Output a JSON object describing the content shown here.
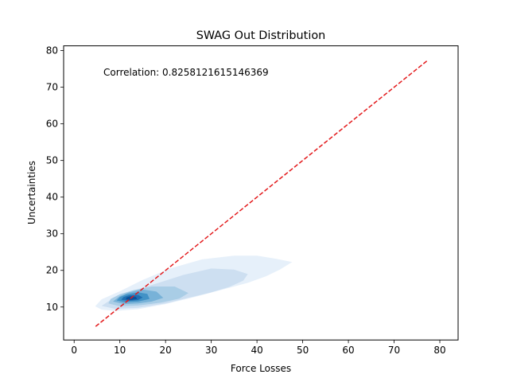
{
  "chart_data": {
    "type": "kde-contour",
    "title": "SWAG Out Distribution",
    "xlabel": "Force Losses",
    "ylabel": "Uncertainties",
    "xlim": [
      -2.3,
      84.0
    ],
    "ylim": [
      1.0,
      81.3
    ],
    "x_ticks": [
      0,
      10,
      20,
      30,
      40,
      50,
      60,
      70,
      80
    ],
    "y_ticks": [
      10,
      20,
      30,
      40,
      50,
      60,
      70,
      80
    ],
    "annotation": "Correlation: 0.8258121615146369",
    "reference_line": {
      "from": [
        4.7,
        4.7
      ],
      "to": [
        77.2,
        77.2
      ],
      "color": "#e31a1c",
      "style": "dashed"
    },
    "grid": false,
    "colormap": [
      "#e6f0fa",
      "#cddff1",
      "#a9cde6",
      "#78b2d8",
      "#4292c6",
      "#1f6eb1",
      "#08519c"
    ],
    "density_levels": [
      {
        "level": 1,
        "points": [
          [
            4.6,
            10.2
          ],
          [
            6,
            9.3
          ],
          [
            9,
            8.9
          ],
          [
            14,
            9.4
          ],
          [
            20,
            10.8
          ],
          [
            26,
            12.6
          ],
          [
            32,
            14.6
          ],
          [
            38,
            16.6
          ],
          [
            42,
            18.4
          ],
          [
            45,
            20.2
          ],
          [
            47.7,
            22.3
          ],
          [
            44,
            23.2
          ],
          [
            40,
            24.0
          ],
          [
            35,
            24.0
          ],
          [
            28,
            23.0
          ],
          [
            21,
            20.5
          ],
          [
            15,
            17.4
          ],
          [
            10,
            14.3
          ],
          [
            6,
            12.1
          ]
        ]
      },
      {
        "level": 2,
        "points": [
          [
            6,
            10.3
          ],
          [
            9,
            9.5
          ],
          [
            14,
            9.8
          ],
          [
            20,
            11.0
          ],
          [
            25,
            12.5
          ],
          [
            30,
            14.0
          ],
          [
            34,
            15.5
          ],
          [
            37,
            17.2
          ],
          [
            38,
            19.0
          ],
          [
            35,
            20.2
          ],
          [
            30,
            20.5
          ],
          [
            24,
            18.8
          ],
          [
            18,
            16.4
          ],
          [
            13,
            14.5
          ],
          [
            9,
            12.8
          ]
        ]
      },
      {
        "level": 3,
        "points": [
          [
            7.5,
            11.0
          ],
          [
            10,
            10.2
          ],
          [
            14,
            10.4
          ],
          [
            19,
            11.2
          ],
          [
            23,
            12.3
          ],
          [
            25,
            13.8
          ],
          [
            22,
            15.6
          ],
          [
            17,
            15.6
          ],
          [
            13,
            14.6
          ],
          [
            10,
            13.5
          ],
          [
            8,
            12.2
          ]
        ]
      },
      {
        "level": 4,
        "points": [
          [
            8.5,
            11.5
          ],
          [
            11,
            10.8
          ],
          [
            14,
            11.0
          ],
          [
            17,
            11.5
          ],
          [
            19.5,
            12.5
          ],
          [
            18,
            14.2
          ],
          [
            15,
            14.8
          ],
          [
            12,
            14.0
          ],
          [
            10,
            13.0
          ]
        ]
      },
      {
        "level": 5,
        "points": [
          [
            9.3,
            11.8
          ],
          [
            11,
            11.3
          ],
          [
            14,
            11.5
          ],
          [
            16.5,
            12.2
          ],
          [
            16,
            13.6
          ],
          [
            14,
            14.0
          ],
          [
            11.5,
            13.5
          ],
          [
            10,
            12.7
          ]
        ]
      },
      {
        "level": 6,
        "points": [
          [
            10.3,
            12.0
          ],
          [
            12,
            11.7
          ],
          [
            14,
            11.9
          ],
          [
            15,
            12.6
          ],
          [
            14,
            13.3
          ],
          [
            12,
            13.2
          ],
          [
            10.8,
            12.7
          ]
        ]
      },
      {
        "level": 7,
        "points": [
          [
            11.3,
            12.1
          ],
          [
            12.5,
            11.9
          ],
          [
            13.8,
            12.2
          ],
          [
            13.5,
            12.8
          ],
          [
            12.3,
            12.9
          ],
          [
            11.5,
            12.6
          ]
        ]
      }
    ]
  }
}
